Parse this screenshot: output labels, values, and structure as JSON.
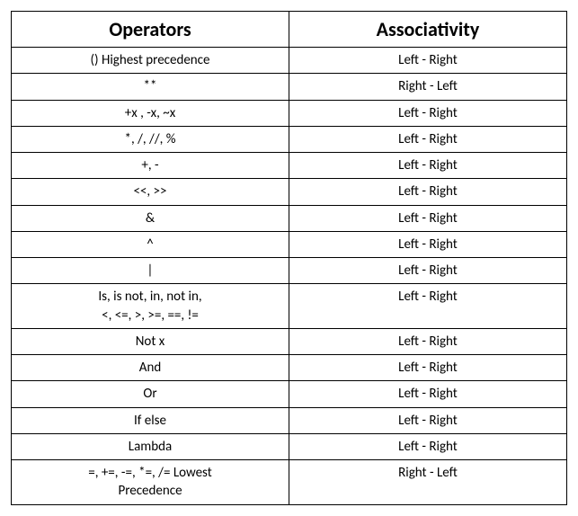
{
  "table": {
    "columns": [
      "Operators",
      "Associativity"
    ],
    "rows": [
      {
        "operators": "()  Highest precedence",
        "associativity": "Left - Right",
        "multiline": false
      },
      {
        "operators": "**",
        "associativity": "Right - Left",
        "multiline": false
      },
      {
        "operators": "+x , -x, ~x",
        "associativity": "Left - Right",
        "multiline": false
      },
      {
        "operators": "*, /, //, %",
        "associativity": "Left - Right",
        "multiline": false
      },
      {
        "operators": "+, -",
        "associativity": "Left - Right",
        "multiline": false
      },
      {
        "operators": "<<, >>",
        "associativity": "Left - Right",
        "multiline": false
      },
      {
        "operators": "&",
        "associativity": "Left - Right",
        "multiline": false
      },
      {
        "operators": "^",
        "associativity": "Left - Right",
        "multiline": false
      },
      {
        "operators": "|",
        "associativity": "Left - Right",
        "multiline": false
      },
      {
        "operators": "Is, is not, in, not in,\n<, <=, >, >=, ==, !=",
        "associativity": "Left - Right",
        "multiline": true
      },
      {
        "operators": "Not x",
        "associativity": "Left - Right",
        "multiline": false
      },
      {
        "operators": "And",
        "associativity": "Left - Right",
        "multiline": false
      },
      {
        "operators": "Or",
        "associativity": "Left - Right",
        "multiline": false
      },
      {
        "operators": "If else",
        "associativity": "Left - Right",
        "multiline": false
      },
      {
        "operators": "Lambda",
        "associativity": "Left - Right",
        "multiline": false
      },
      {
        "operators": "=, +=, -=, *=, /=  Lowest\nPrecedence",
        "associativity": "Right - Left",
        "multiline": true
      }
    ],
    "column_widths": [
      "50%",
      "50%"
    ],
    "header_fontsize": 22,
    "cell_fontsize": 15,
    "border_color": "#000000",
    "background_color": "#ffffff",
    "text_color": "#000000"
  }
}
